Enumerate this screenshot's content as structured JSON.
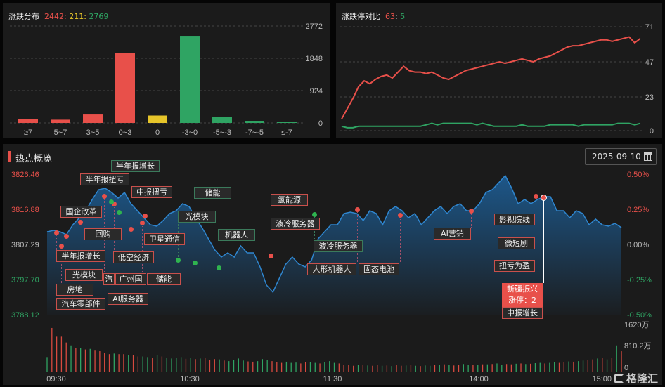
{
  "dist_panel": {
    "title": "涨跌分布",
    "up": "2442",
    "flat": "211",
    "down": "2769"
  },
  "limit_panel": {
    "title": "涨跌停对比",
    "up": "63",
    "down": "5"
  },
  "hot_panel": {
    "title": "热点概览",
    "date": "2025-09-10",
    "calendar_icon": "calendar-icon",
    "brand": "格隆汇"
  },
  "colors": {
    "up": "#e8504a",
    "flat": "#e6c52a",
    "down": "#2fa463",
    "area": "#1d5a8f"
  },
  "chart_data": [
    {
      "type": "bar",
      "title": "涨跌分布",
      "categories": [
        "≥7",
        "5~7",
        "3~5",
        "0~3",
        "0",
        "-3~0",
        "-5~-3",
        "-7~-5",
        "≤-7"
      ],
      "values": [
        110,
        92,
        240,
        2000,
        211,
        2490,
        180,
        60,
        39
      ],
      "colors": [
        "#e8504a",
        "#e8504a",
        "#e8504a",
        "#e8504a",
        "#e6c52a",
        "#2fa463",
        "#2fa463",
        "#2fa463",
        "#2fa463"
      ],
      "yticks": [
        "0",
        "924",
        "1848",
        "2772"
      ],
      "ylim": [
        0,
        2772
      ],
      "grid": true
    },
    {
      "type": "line",
      "title": "涨跌停对比",
      "yticks": [
        "0",
        "23",
        "47",
        "71"
      ],
      "ylim": [
        0,
        71
      ],
      "grid": true,
      "series": [
        {
          "color": "#e8504a",
          "values": [
            8,
            15,
            22,
            30,
            34,
            32,
            35,
            37,
            38,
            36,
            40,
            44,
            41,
            40,
            40,
            39,
            40,
            38,
            36,
            35,
            37,
            39,
            41,
            42,
            43,
            44,
            45,
            46,
            47,
            46,
            47,
            48,
            49,
            48,
            47,
            49,
            50,
            51,
            53,
            55,
            57,
            58,
            58,
            59,
            60,
            61,
            62,
            62,
            61,
            62,
            63,
            64,
            60,
            63
          ]
        },
        {
          "color": "#2fa463",
          "values": [
            3,
            2,
            2,
            3,
            3,
            3,
            3,
            3,
            3,
            3,
            3,
            3,
            3,
            3,
            3,
            4,
            5,
            4,
            5,
            5,
            5,
            5,
            5,
            5,
            4,
            5,
            4,
            3,
            3,
            3,
            3,
            3,
            4,
            3,
            3,
            3,
            3,
            4,
            4,
            4,
            4,
            4,
            3,
            4,
            4,
            4,
            4,
            4,
            4,
            5,
            5,
            5,
            4,
            5
          ]
        }
      ]
    },
    {
      "type": "area",
      "title": "热点概览",
      "yticks_left": [
        "3826.46",
        "3816.88",
        "3807.29",
        "3797.70",
        "3788.12"
      ],
      "yticks_right": [
        "0.50%",
        "0.25%",
        "0.00%",
        "-0.25%",
        "-0.50%"
      ],
      "ylim_pct": [
        -0.5,
        0.5
      ],
      "xticks": [
        "09:30",
        "10:30",
        "11:30",
        "14:00",
        "15:00"
      ],
      "pct_change": [
        0.09,
        0.1,
        0.09,
        0.07,
        0.14,
        0.19,
        0.24,
        0.32,
        0.39,
        0.4,
        0.37,
        0.33,
        0.37,
        0.29,
        0.24,
        0.19,
        0.14,
        0.13,
        0.17,
        0.22,
        0.24,
        0.29,
        0.27,
        0.19,
        0.12,
        0.04,
        -0.04,
        -0.09,
        -0.06,
        -0.09,
        -0.01,
        -0.06,
        -0.06,
        -0.16,
        -0.29,
        -0.34,
        -0.24,
        -0.14,
        -0.09,
        -0.14,
        -0.16,
        -0.11,
        0.04,
        0.09,
        0.14,
        0.14,
        0.22,
        0.23,
        0.22,
        0.17,
        0.24,
        0.22,
        0.14,
        0.24,
        0.27,
        0.24,
        0.19,
        0.22,
        0.14,
        0.19,
        0.24,
        0.27,
        0.22,
        0.27,
        0.29,
        0.24,
        0.24,
        0.29,
        0.37,
        0.39,
        0.44,
        0.49,
        0.4,
        0.29,
        0.32,
        0.29,
        0.32,
        0.34,
        0.34,
        0.24,
        0.24,
        0.19,
        0.24,
        0.22,
        0.14,
        0.18,
        0.14,
        0.13,
        0.15,
        0.12
      ],
      "volume_ticks": [
        "1620万",
        "810.2万",
        "0"
      ],
      "volume_max": 1620,
      "volume": [
        500,
        1500,
        1200,
        1200,
        1000,
        900,
        800,
        820,
        760,
        780,
        720,
        700,
        640,
        600,
        620,
        600,
        600,
        580,
        560,
        520,
        520,
        500,
        480,
        560,
        520,
        480,
        450,
        470,
        500,
        440,
        460,
        430,
        450,
        470,
        400,
        430,
        420,
        380,
        360,
        400,
        450,
        380,
        350,
        340,
        360,
        430,
        400,
        360,
        330,
        300,
        340,
        300,
        310,
        280,
        330,
        330,
        300,
        280,
        320,
        360,
        300,
        280,
        230,
        220,
        200,
        220,
        240,
        210,
        200,
        230,
        200,
        210,
        190,
        220,
        200,
        210,
        230,
        200,
        190,
        210,
        200,
        220,
        240,
        250,
        230,
        210,
        240,
        260,
        240,
        220,
        230,
        250,
        250,
        260,
        280,
        240,
        260,
        250,
        270,
        280,
        260,
        270,
        290,
        300,
        280,
        300,
        320,
        300,
        330,
        350,
        340,
        360,
        380,
        400,
        420,
        450,
        480,
        420,
        460,
        900,
        700
      ],
      "volume_up": [
        0,
        1,
        1,
        1,
        1,
        0,
        1,
        0,
        1,
        0,
        1,
        1,
        1,
        1,
        0,
        1,
        1,
        0,
        1,
        1,
        0,
        0,
        1,
        0,
        1,
        0,
        0,
        0,
        0,
        1,
        0,
        1,
        0,
        1,
        1,
        1,
        0,
        1,
        0,
        0,
        0,
        0,
        1,
        1,
        0,
        0,
        0,
        1,
        1,
        1,
        0,
        0,
        0,
        1,
        1,
        0,
        0,
        1,
        0,
        0,
        0,
        1,
        1,
        1,
        1,
        0,
        1,
        0,
        1,
        1,
        0,
        1,
        0,
        1,
        1,
        0,
        1,
        0,
        1,
        0,
        0,
        1,
        0,
        1,
        0,
        1,
        1,
        0,
        0,
        1,
        0,
        1,
        0,
        1,
        0,
        0,
        1,
        1,
        0,
        1,
        0,
        1,
        0,
        0,
        1,
        0,
        0,
        1,
        1,
        0,
        1,
        0,
        0,
        1,
        1,
        0,
        1,
        0,
        1,
        0,
        1
      ]
    }
  ],
  "tags": [
    {
      "text": "半年报扭亏"
    },
    {
      "text": "半年报增长"
    },
    {
      "text": "中报扭亏"
    },
    {
      "text": "国企改革"
    },
    {
      "text": "回购"
    },
    {
      "text": "半年报增长"
    },
    {
      "text": "低空经济"
    },
    {
      "text": "卫星通信"
    },
    {
      "text": "房地"
    },
    {
      "text": "光模块"
    },
    {
      "text": "汽"
    },
    {
      "text": "广州国"
    },
    {
      "text": "储能"
    },
    {
      "text": "汽车零部件"
    },
    {
      "text": "AI服务器"
    },
    {
      "text": "储能"
    },
    {
      "text": "光模块"
    },
    {
      "text": "机器人"
    },
    {
      "text": "氢能源"
    },
    {
      "text": "液冷服务器"
    },
    {
      "text": "液冷服务器"
    },
    {
      "text": "人形机器人"
    },
    {
      "text": "固态电池"
    },
    {
      "text": "AI营销"
    },
    {
      "text": "影视院线"
    },
    {
      "text": "微短剧"
    },
    {
      "text": "扭亏为盈"
    },
    {
      "text": "中报增长"
    }
  ],
  "highlight": {
    "name": "新疆振兴",
    "limit_up": "涨停：2"
  }
}
